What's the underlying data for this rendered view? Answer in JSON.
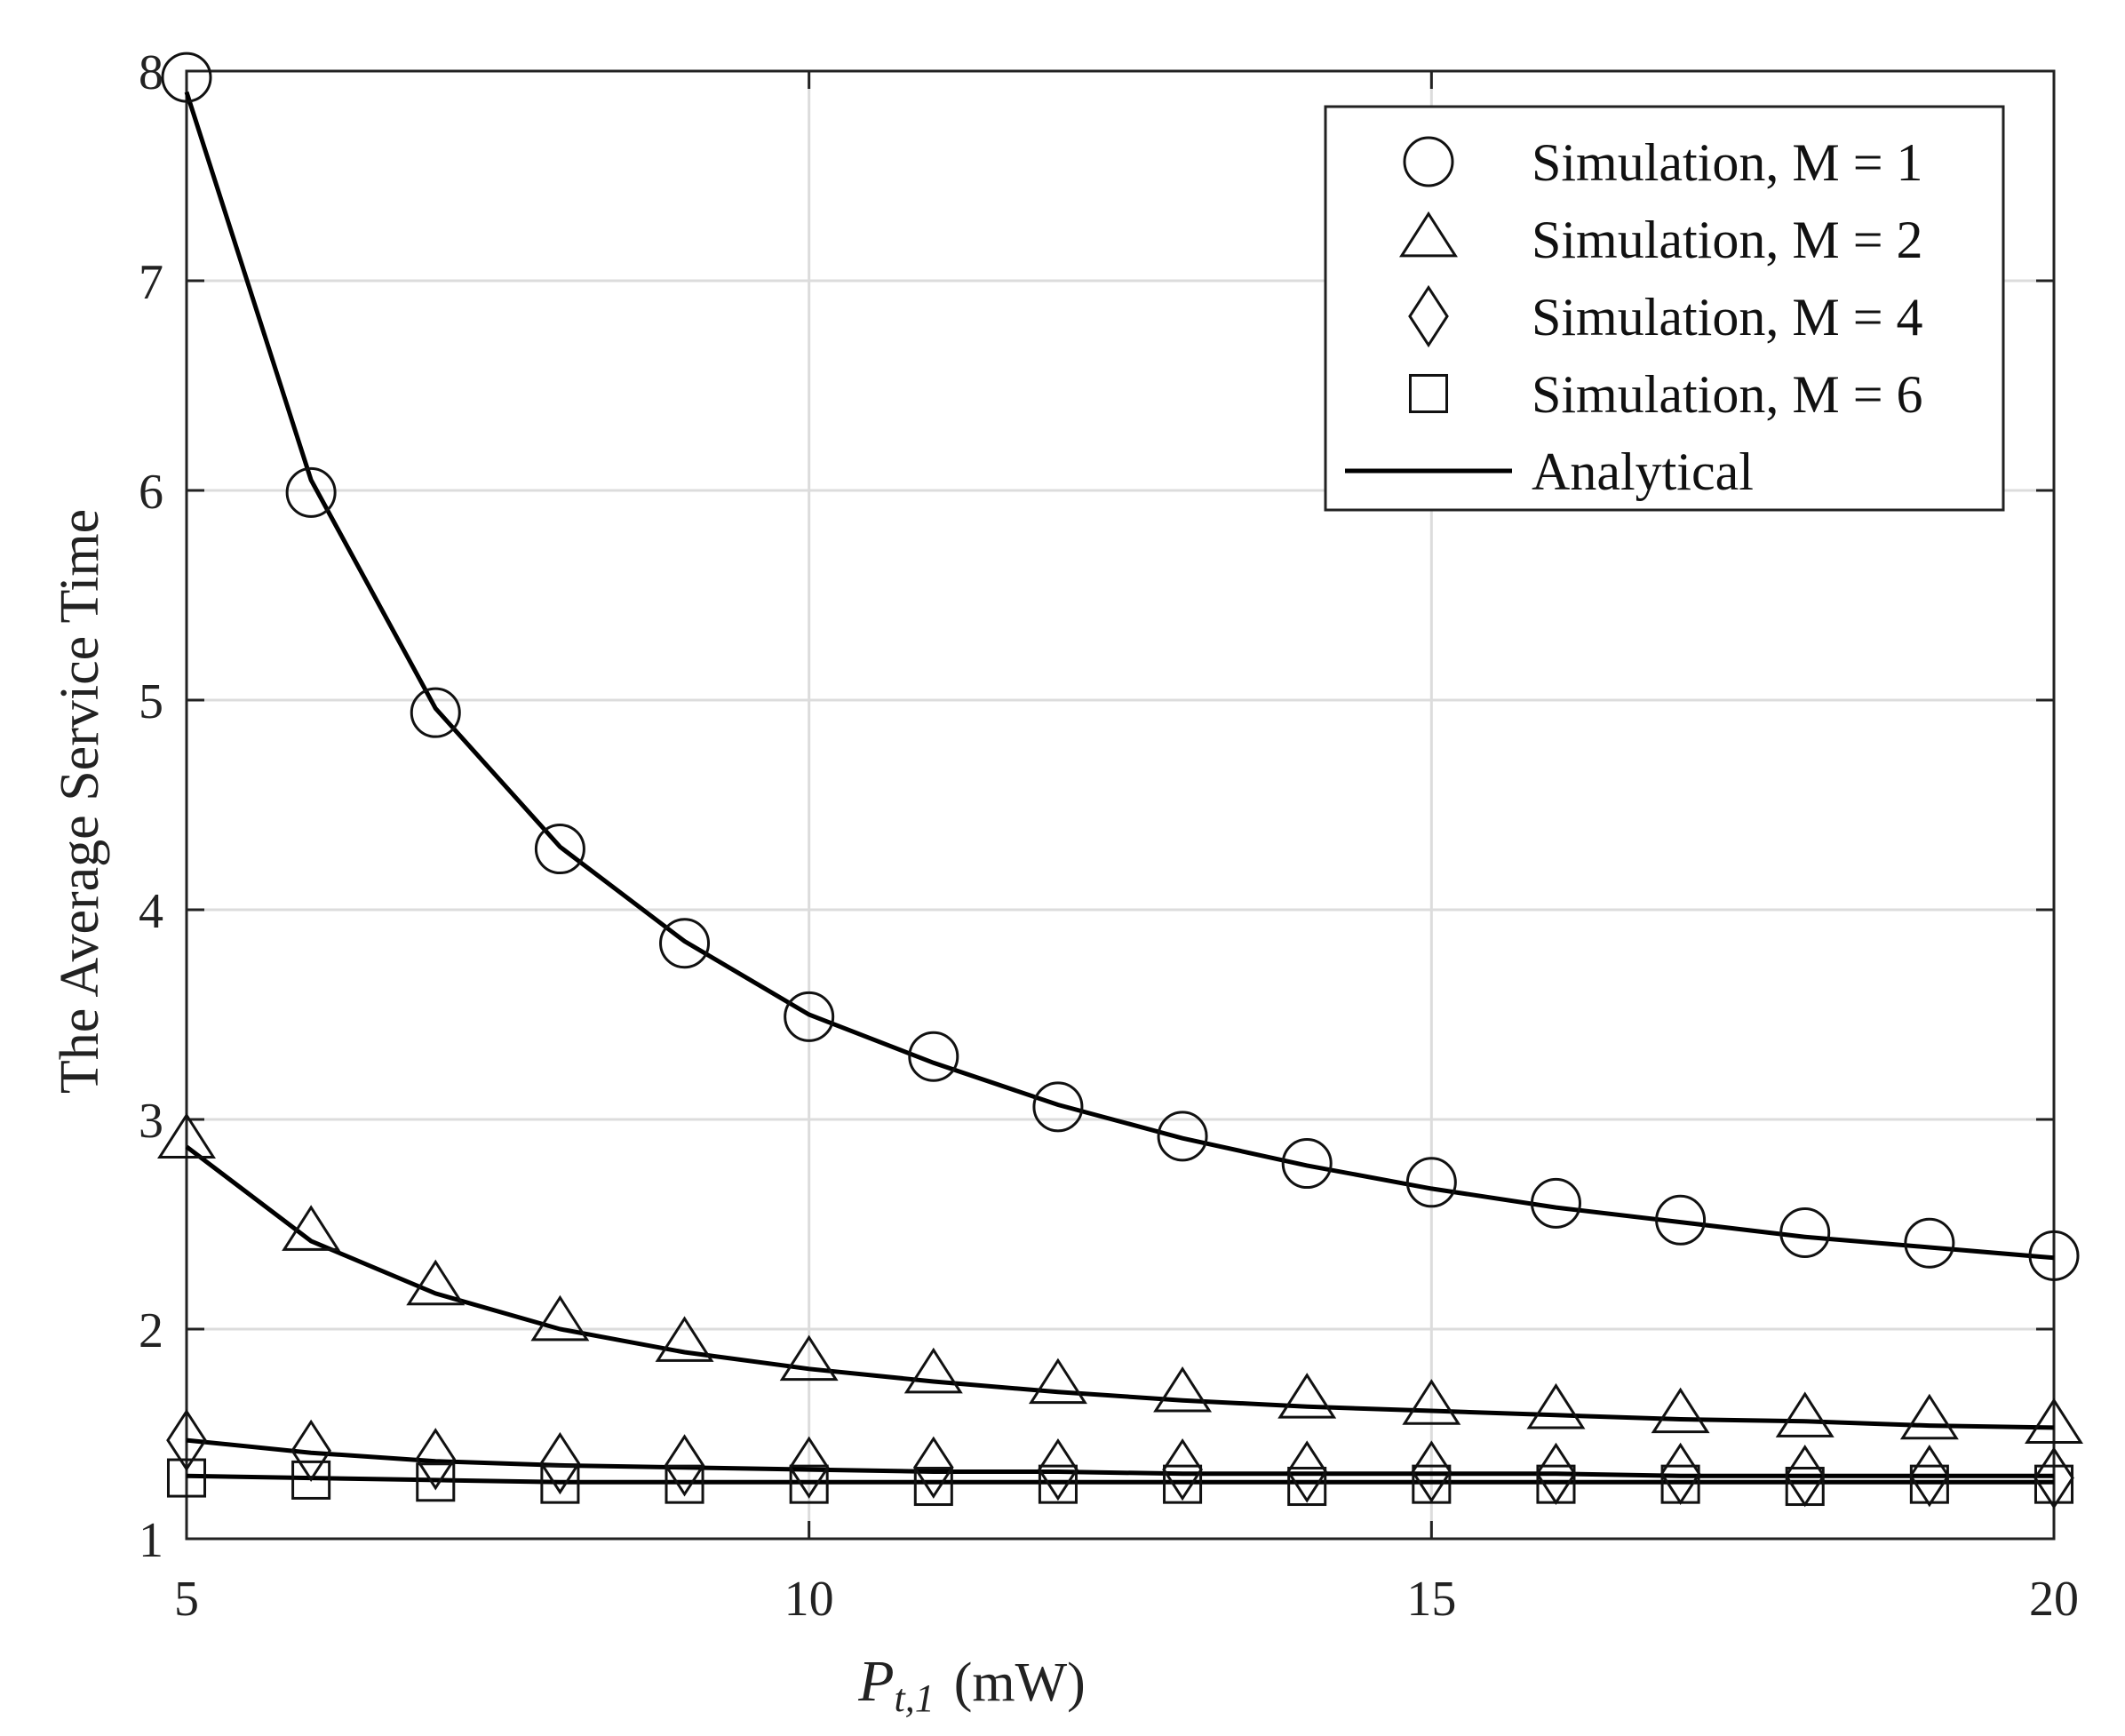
{
  "chart_data": {
    "type": "line",
    "title": "",
    "xlabel": "(mW)",
    "xlabel_math": {
      "base": "P",
      "sub": "t,1"
    },
    "ylabel": "The Average Service Time",
    "xlim": [
      5,
      20
    ],
    "ylim": [
      1,
      8
    ],
    "xticks": [
      5,
      10,
      15,
      20
    ],
    "yticks": [
      1,
      2,
      3,
      4,
      5,
      6,
      7,
      8
    ],
    "grid": true,
    "legend_position": "top-right",
    "x": [
      5,
      6,
      7,
      8,
      9,
      10,
      11,
      12,
      13,
      14,
      15,
      16,
      17,
      18,
      19,
      20
    ],
    "series": [
      {
        "name": "Simulation, M = 1",
        "marker": "circle",
        "kind": "markers",
        "values": [
          7.97,
          5.99,
          4.94,
          4.29,
          3.84,
          3.49,
          3.3,
          3.06,
          2.92,
          2.79,
          2.7,
          2.6,
          2.52,
          2.46,
          2.41,
          2.35
        ]
      },
      {
        "name": "Simulation, M = 2",
        "marker": "triangle",
        "kind": "markers",
        "values": [
          2.9,
          2.46,
          2.2,
          2.03,
          1.93,
          1.84,
          1.78,
          1.73,
          1.69,
          1.66,
          1.63,
          1.61,
          1.59,
          1.57,
          1.56,
          1.54
        ]
      },
      {
        "name": "Simulation, M = 4",
        "marker": "diamond",
        "kind": "markers",
        "values": [
          1.47,
          1.42,
          1.38,
          1.36,
          1.35,
          1.34,
          1.34,
          1.33,
          1.33,
          1.32,
          1.32,
          1.31,
          1.31,
          1.3,
          1.3,
          1.29
        ]
      },
      {
        "name": "Simulation, M = 6",
        "marker": "square",
        "kind": "markers",
        "values": [
          1.29,
          1.28,
          1.27,
          1.26,
          1.26,
          1.26,
          1.25,
          1.26,
          1.26,
          1.25,
          1.26,
          1.26,
          1.26,
          1.25,
          1.26,
          1.26
        ]
      },
      {
        "name": "Analytical",
        "marker": "none",
        "kind": "line",
        "curves": [
          [
            7.9,
            6.05,
            4.96,
            4.3,
            3.85,
            3.5,
            3.27,
            3.07,
            2.91,
            2.78,
            2.67,
            2.58,
            2.51,
            2.44,
            2.39,
            2.34
          ],
          [
            2.87,
            2.42,
            2.17,
            2.0,
            1.89,
            1.81,
            1.75,
            1.7,
            1.66,
            1.63,
            1.61,
            1.59,
            1.57,
            1.56,
            1.54,
            1.53
          ],
          [
            1.47,
            1.41,
            1.37,
            1.35,
            1.34,
            1.33,
            1.32,
            1.32,
            1.31,
            1.31,
            1.31,
            1.31,
            1.3,
            1.3,
            1.3,
            1.3
          ],
          [
            1.3,
            1.29,
            1.28,
            1.27,
            1.27,
            1.27,
            1.27,
            1.27,
            1.27,
            1.27,
            1.27,
            1.27,
            1.27,
            1.27,
            1.27,
            1.27
          ]
        ]
      }
    ]
  }
}
